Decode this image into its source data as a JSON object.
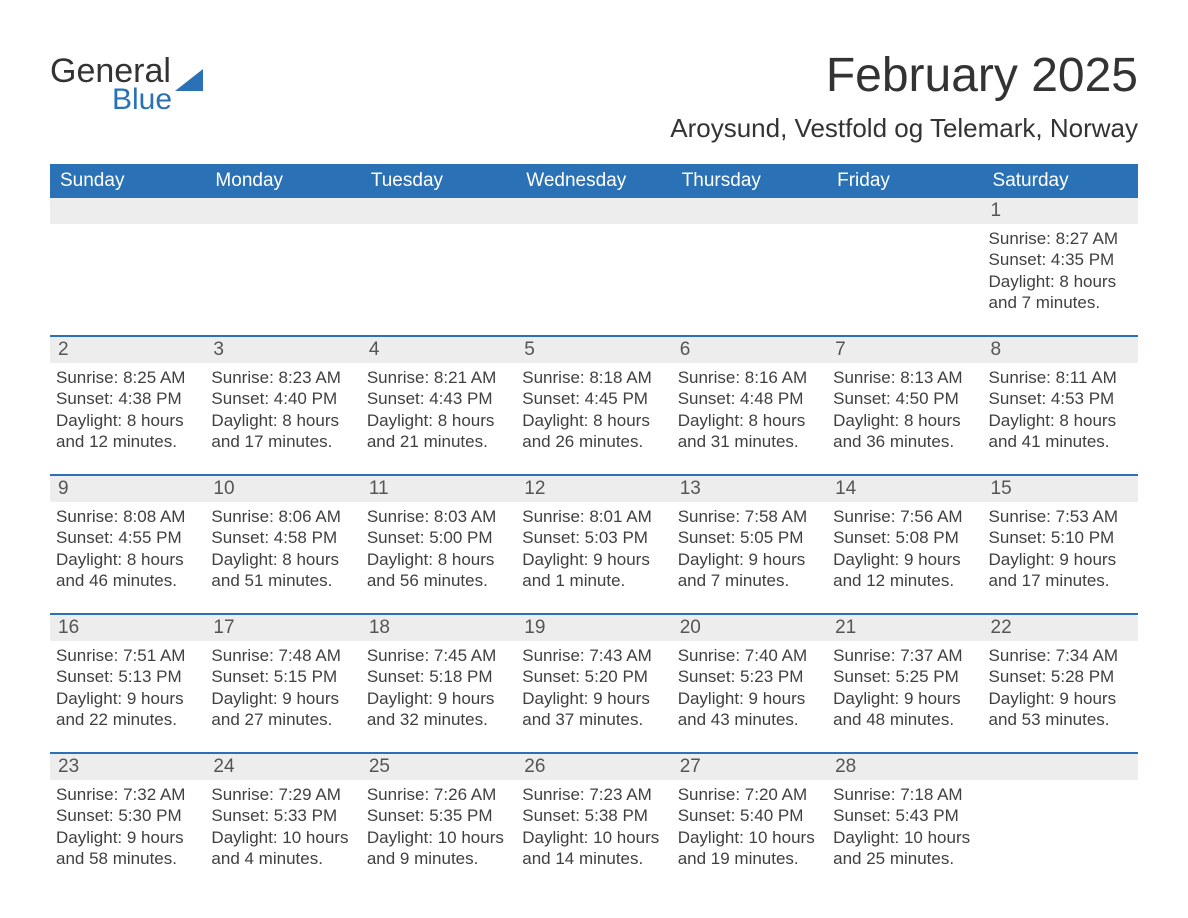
{
  "logo": {
    "text1": "General",
    "text2": "Blue"
  },
  "title": "February 2025",
  "location": "Aroysund, Vestfold og Telemark, Norway",
  "colors": {
    "header_bg": "#2a72b5",
    "header_text": "#ffffff",
    "daybar_bg": "#ededed",
    "body_text": "#404040",
    "border": "#2a72b5",
    "background": "#ffffff"
  },
  "font": {
    "family": "Segoe UI, Arial, sans-serif",
    "th_size": 19,
    "td_size": 17,
    "title_size": 48,
    "location_size": 26
  },
  "weekdays": [
    "Sunday",
    "Monday",
    "Tuesday",
    "Wednesday",
    "Thursday",
    "Friday",
    "Saturday"
  ],
  "weeks": [
    [
      {
        "empty": true
      },
      {
        "empty": true
      },
      {
        "empty": true
      },
      {
        "empty": true
      },
      {
        "empty": true
      },
      {
        "empty": true
      },
      {
        "day": "1",
        "sunrise": "Sunrise: 8:27 AM",
        "sunset": "Sunset: 4:35 PM",
        "daylight": "Daylight: 8 hours and 7 minutes."
      }
    ],
    [
      {
        "day": "2",
        "sunrise": "Sunrise: 8:25 AM",
        "sunset": "Sunset: 4:38 PM",
        "daylight": "Daylight: 8 hours and 12 minutes."
      },
      {
        "day": "3",
        "sunrise": "Sunrise: 8:23 AM",
        "sunset": "Sunset: 4:40 PM",
        "daylight": "Daylight: 8 hours and 17 minutes."
      },
      {
        "day": "4",
        "sunrise": "Sunrise: 8:21 AM",
        "sunset": "Sunset: 4:43 PM",
        "daylight": "Daylight: 8 hours and 21 minutes."
      },
      {
        "day": "5",
        "sunrise": "Sunrise: 8:18 AM",
        "sunset": "Sunset: 4:45 PM",
        "daylight": "Daylight: 8 hours and 26 minutes."
      },
      {
        "day": "6",
        "sunrise": "Sunrise: 8:16 AM",
        "sunset": "Sunset: 4:48 PM",
        "daylight": "Daylight: 8 hours and 31 minutes."
      },
      {
        "day": "7",
        "sunrise": "Sunrise: 8:13 AM",
        "sunset": "Sunset: 4:50 PM",
        "daylight": "Daylight: 8 hours and 36 minutes."
      },
      {
        "day": "8",
        "sunrise": "Sunrise: 8:11 AM",
        "sunset": "Sunset: 4:53 PM",
        "daylight": "Daylight: 8 hours and 41 minutes."
      }
    ],
    [
      {
        "day": "9",
        "sunrise": "Sunrise: 8:08 AM",
        "sunset": "Sunset: 4:55 PM",
        "daylight": "Daylight: 8 hours and 46 minutes."
      },
      {
        "day": "10",
        "sunrise": "Sunrise: 8:06 AM",
        "sunset": "Sunset: 4:58 PM",
        "daylight": "Daylight: 8 hours and 51 minutes."
      },
      {
        "day": "11",
        "sunrise": "Sunrise: 8:03 AM",
        "sunset": "Sunset: 5:00 PM",
        "daylight": "Daylight: 8 hours and 56 minutes."
      },
      {
        "day": "12",
        "sunrise": "Sunrise: 8:01 AM",
        "sunset": "Sunset: 5:03 PM",
        "daylight": "Daylight: 9 hours and 1 minute."
      },
      {
        "day": "13",
        "sunrise": "Sunrise: 7:58 AM",
        "sunset": "Sunset: 5:05 PM",
        "daylight": "Daylight: 9 hours and 7 minutes."
      },
      {
        "day": "14",
        "sunrise": "Sunrise: 7:56 AM",
        "sunset": "Sunset: 5:08 PM",
        "daylight": "Daylight: 9 hours and 12 minutes."
      },
      {
        "day": "15",
        "sunrise": "Sunrise: 7:53 AM",
        "sunset": "Sunset: 5:10 PM",
        "daylight": "Daylight: 9 hours and 17 minutes."
      }
    ],
    [
      {
        "day": "16",
        "sunrise": "Sunrise: 7:51 AM",
        "sunset": "Sunset: 5:13 PM",
        "daylight": "Daylight: 9 hours and 22 minutes."
      },
      {
        "day": "17",
        "sunrise": "Sunrise: 7:48 AM",
        "sunset": "Sunset: 5:15 PM",
        "daylight": "Daylight: 9 hours and 27 minutes."
      },
      {
        "day": "18",
        "sunrise": "Sunrise: 7:45 AM",
        "sunset": "Sunset: 5:18 PM",
        "daylight": "Daylight: 9 hours and 32 minutes."
      },
      {
        "day": "19",
        "sunrise": "Sunrise: 7:43 AM",
        "sunset": "Sunset: 5:20 PM",
        "daylight": "Daylight: 9 hours and 37 minutes."
      },
      {
        "day": "20",
        "sunrise": "Sunrise: 7:40 AM",
        "sunset": "Sunset: 5:23 PM",
        "daylight": "Daylight: 9 hours and 43 minutes."
      },
      {
        "day": "21",
        "sunrise": "Sunrise: 7:37 AM",
        "sunset": "Sunset: 5:25 PM",
        "daylight": "Daylight: 9 hours and 48 minutes."
      },
      {
        "day": "22",
        "sunrise": "Sunrise: 7:34 AM",
        "sunset": "Sunset: 5:28 PM",
        "daylight": "Daylight: 9 hours and 53 minutes."
      }
    ],
    [
      {
        "day": "23",
        "sunrise": "Sunrise: 7:32 AM",
        "sunset": "Sunset: 5:30 PM",
        "daylight": "Daylight: 9 hours and 58 minutes."
      },
      {
        "day": "24",
        "sunrise": "Sunrise: 7:29 AM",
        "sunset": "Sunset: 5:33 PM",
        "daylight": "Daylight: 10 hours and 4 minutes."
      },
      {
        "day": "25",
        "sunrise": "Sunrise: 7:26 AM",
        "sunset": "Sunset: 5:35 PM",
        "daylight": "Daylight: 10 hours and 9 minutes."
      },
      {
        "day": "26",
        "sunrise": "Sunrise: 7:23 AM",
        "sunset": "Sunset: 5:38 PM",
        "daylight": "Daylight: 10 hours and 14 minutes."
      },
      {
        "day": "27",
        "sunrise": "Sunrise: 7:20 AM",
        "sunset": "Sunset: 5:40 PM",
        "daylight": "Daylight: 10 hours and 19 minutes."
      },
      {
        "day": "28",
        "sunrise": "Sunrise: 7:18 AM",
        "sunset": "Sunset: 5:43 PM",
        "daylight": "Daylight: 10 hours and 25 minutes."
      },
      {
        "empty": true
      }
    ]
  ]
}
